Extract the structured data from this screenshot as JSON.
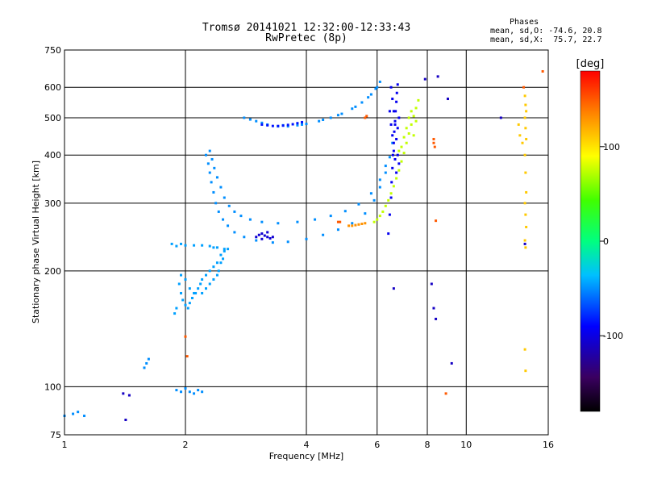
{
  "title": "Tromsø 20141021 12:32:00-12:33:43",
  "subtitle": "RwPretec (8p)",
  "phase_stats": {
    "heading": "Phases",
    "o_line": "mean, sd,O: -74.6, 20.8",
    "x_line": "mean, sd,X:  75.7, 22.7"
  },
  "chart_data": {
    "type": "scatter",
    "xlabel": "Frequency [MHz]",
    "ylabel": "Stationary phase Virtual Height [km]",
    "xscale": "log",
    "yscale": "log",
    "xlim": [
      1,
      16
    ],
    "ylim": [
      75,
      750
    ],
    "grid": true,
    "x_ticks": [
      1,
      2,
      4,
      6,
      8,
      10,
      16
    ],
    "y_ticks": [
      75,
      100,
      200,
      300,
      400,
      500,
      600,
      750
    ],
    "colorbar": {
      "label": "[deg]",
      "range": [
        -180,
        180
      ],
      "ticks": [
        100,
        0,
        -100
      ]
    },
    "series": [
      {
        "phase_deg": -45,
        "points": [
          [
            1.85,
            235
          ],
          [
            1.9,
            232
          ],
          [
            1.95,
            235
          ],
          [
            2.0,
            233
          ],
          [
            2.1,
            233
          ],
          [
            2.2,
            233
          ],
          [
            2.3,
            232
          ],
          [
            2.4,
            230
          ],
          [
            2.5,
            228
          ],
          [
            2.35,
            230
          ]
        ]
      },
      {
        "phase_deg": -45,
        "points": [
          [
            1.93,
            185
          ],
          [
            1.95,
            175
          ],
          [
            1.97,
            168
          ],
          [
            2.0,
            163
          ],
          [
            2.03,
            160
          ],
          [
            2.05,
            165
          ],
          [
            2.08,
            170
          ],
          [
            2.1,
            175
          ],
          [
            1.9,
            160
          ],
          [
            1.88,
            155
          ],
          [
            1.95,
            195
          ],
          [
            2.0,
            190
          ],
          [
            2.05,
            180
          ],
          [
            2.12,
            175
          ],
          [
            2.15,
            180
          ],
          [
            2.18,
            185
          ],
          [
            2.2,
            190
          ],
          [
            2.25,
            195
          ],
          [
            2.3,
            200
          ],
          [
            2.35,
            205
          ],
          [
            2.4,
            210
          ],
          [
            2.45,
            220
          ],
          [
            2.5,
            225
          ],
          [
            2.55,
            228
          ],
          [
            2.2,
            175
          ],
          [
            2.25,
            180
          ],
          [
            2.3,
            185
          ],
          [
            2.35,
            190
          ],
          [
            2.4,
            195
          ],
          [
            2.42,
            200
          ],
          [
            2.45,
            210
          ],
          [
            2.48,
            215
          ]
        ]
      },
      {
        "phase_deg": -50,
        "points": [
          [
            2.25,
            400
          ],
          [
            2.28,
            380
          ],
          [
            2.3,
            360
          ],
          [
            2.32,
            340
          ],
          [
            2.35,
            320
          ],
          [
            2.38,
            300
          ],
          [
            2.42,
            285
          ],
          [
            2.48,
            272
          ],
          [
            2.55,
            262
          ],
          [
            2.65,
            252
          ],
          [
            2.8,
            245
          ],
          [
            3.0,
            240
          ],
          [
            3.3,
            237
          ],
          [
            3.6,
            238
          ],
          [
            4.0,
            242
          ],
          [
            4.4,
            248
          ],
          [
            4.8,
            256
          ],
          [
            5.2,
            266
          ],
          [
            5.6,
            282
          ],
          [
            5.9,
            305
          ],
          [
            6.1,
            330
          ],
          [
            6.3,
            360
          ],
          [
            6.45,
            395
          ],
          [
            6.55,
            430
          ],
          [
            2.3,
            410
          ],
          [
            2.33,
            390
          ],
          [
            2.36,
            370
          ],
          [
            2.4,
            350
          ],
          [
            2.45,
            330
          ],
          [
            2.5,
            310
          ],
          [
            2.57,
            295
          ],
          [
            2.65,
            285
          ],
          [
            2.75,
            278
          ],
          [
            2.9,
            272
          ],
          [
            3.1,
            268
          ],
          [
            3.4,
            266
          ],
          [
            3.8,
            268
          ],
          [
            4.2,
            272
          ],
          [
            4.6,
            278
          ],
          [
            5.0,
            286
          ],
          [
            5.4,
            298
          ],
          [
            5.8,
            318
          ],
          [
            6.1,
            345
          ],
          [
            6.3,
            375
          ]
        ]
      },
      {
        "phase_deg": -50,
        "points": [
          [
            2.8,
            500
          ],
          [
            2.9,
            495
          ],
          [
            3.0,
            490
          ],
          [
            3.2,
            480
          ],
          [
            3.4,
            475
          ],
          [
            3.6,
            475
          ],
          [
            3.8,
            478
          ],
          [
            4.0,
            482
          ],
          [
            4.3,
            490
          ],
          [
            4.6,
            500
          ],
          [
            4.9,
            512
          ],
          [
            5.2,
            528
          ],
          [
            5.5,
            548
          ],
          [
            5.8,
            575
          ],
          [
            6.0,
            600
          ],
          [
            6.1,
            620
          ],
          [
            3.1,
            485
          ],
          [
            3.5,
            478
          ],
          [
            3.9,
            480
          ],
          [
            4.4,
            494
          ],
          [
            4.8,
            508
          ],
          [
            5.3,
            534
          ],
          [
            5.7,
            565
          ],
          [
            5.95,
            595
          ]
        ]
      },
      {
        "phase_deg": -85,
        "points": [
          [
            3.1,
            480
          ],
          [
            3.2,
            478
          ],
          [
            3.3,
            476
          ],
          [
            3.4,
            476
          ],
          [
            3.5,
            477
          ],
          [
            3.6,
            479
          ],
          [
            3.7,
            481
          ],
          [
            3.8,
            484
          ],
          [
            3.9,
            487
          ]
        ]
      },
      {
        "phase_deg": -105,
        "points": [
          [
            3.0,
            245
          ],
          [
            3.05,
            248
          ],
          [
            3.1,
            250
          ],
          [
            3.15,
            247
          ],
          [
            3.2,
            245
          ],
          [
            3.25,
            243
          ],
          [
            3.3,
            245
          ],
          [
            3.2,
            252
          ],
          [
            3.1,
            242
          ]
        ]
      },
      {
        "phase_deg": -95,
        "points": [
          [
            6.4,
            250
          ],
          [
            6.45,
            280
          ],
          [
            6.5,
            310
          ],
          [
            6.52,
            340
          ],
          [
            6.55,
            370
          ],
          [
            6.57,
            400
          ],
          [
            6.6,
            430
          ],
          [
            6.62,
            460
          ],
          [
            6.65,
            490
          ],
          [
            6.67,
            520
          ],
          [
            6.7,
            550
          ],
          [
            6.72,
            580
          ],
          [
            6.75,
            610
          ],
          [
            6.5,
            600
          ],
          [
            6.55,
            560
          ],
          [
            6.6,
            520
          ],
          [
            6.65,
            480
          ],
          [
            6.7,
            440
          ],
          [
            6.75,
            400
          ],
          [
            6.8,
            380
          ],
          [
            6.45,
            520
          ],
          [
            6.5,
            480
          ],
          [
            6.55,
            450
          ],
          [
            6.6,
            410
          ],
          [
            6.65,
            390
          ],
          [
            6.7,
            360
          ],
          [
            6.75,
            470
          ],
          [
            6.8,
            500
          ]
        ]
      },
      {
        "phase_deg": 75,
        "points": [
          [
            5.9,
            268
          ],
          [
            6.0,
            272
          ],
          [
            6.1,
            278
          ],
          [
            6.2,
            285
          ],
          [
            6.3,
            295
          ],
          [
            6.4,
            305
          ],
          [
            6.5,
            318
          ],
          [
            6.6,
            332
          ],
          [
            6.7,
            348
          ],
          [
            6.8,
            365
          ],
          [
            6.9,
            385
          ],
          [
            7.0,
            405
          ],
          [
            7.1,
            430
          ],
          [
            7.2,
            455
          ],
          [
            7.3,
            480
          ],
          [
            7.4,
            505
          ],
          [
            7.5,
            530
          ],
          [
            7.6,
            555
          ],
          [
            7.1,
            470
          ],
          [
            7.2,
            500
          ],
          [
            7.3,
            520
          ],
          [
            6.9,
            420
          ],
          [
            7.0,
            445
          ],
          [
            6.8,
            410
          ],
          [
            7.4,
            450
          ],
          [
            7.5,
            490
          ]
        ]
      },
      {
        "phase_deg": 130,
        "points": [
          [
            5.1,
            262
          ],
          [
            5.2,
            262
          ],
          [
            5.3,
            263
          ],
          [
            5.4,
            264
          ],
          [
            5.5,
            265
          ],
          [
            5.6,
            266
          ]
        ]
      },
      {
        "phase_deg": 150,
        "points": [
          [
            4.8,
            268
          ],
          [
            4.85,
            268
          ],
          [
            5.6,
            500
          ],
          [
            5.65,
            505
          ],
          [
            8.3,
            430
          ],
          [
            8.35,
            420
          ]
        ]
      },
      {
        "phase_deg": -50,
        "points": [
          [
            1.6,
            115
          ],
          [
            1.62,
            118
          ],
          [
            1.58,
            112
          ],
          [
            1.9,
            98
          ],
          [
            1.95,
            97
          ],
          [
            2.0,
            99
          ],
          [
            2.05,
            97
          ],
          [
            2.1,
            96
          ],
          [
            2.15,
            98
          ],
          [
            2.2,
            97
          ],
          [
            1.05,
            85
          ],
          [
            1.08,
            86
          ],
          [
            1.12,
            84
          ],
          [
            1.0,
            84
          ]
        ]
      },
      {
        "phase_deg": -110,
        "points": [
          [
            1.4,
            96
          ],
          [
            1.45,
            95
          ],
          [
            1.42,
            82
          ],
          [
            7.9,
            630
          ],
          [
            8.5,
            640
          ],
          [
            9.0,
            560
          ],
          [
            6.6,
            180
          ],
          [
            8.2,
            185
          ],
          [
            8.3,
            160
          ],
          [
            8.4,
            150
          ],
          [
            9.2,
            115
          ],
          [
            12.2,
            500
          ],
          [
            14.0,
            235
          ]
        ]
      },
      {
        "phase_deg": 110,
        "points": [
          [
            14.0,
            570
          ],
          [
            14.05,
            540
          ],
          [
            14.1,
            520
          ],
          [
            14.0,
            500
          ],
          [
            14.05,
            470
          ],
          [
            14.1,
            440
          ],
          [
            14.0,
            400
          ],
          [
            14.05,
            360
          ],
          [
            14.1,
            320
          ],
          [
            14.0,
            300
          ],
          [
            14.05,
            280
          ],
          [
            14.1,
            260
          ],
          [
            14.0,
            240
          ],
          [
            14.05,
            230
          ],
          [
            14.0,
            125
          ],
          [
            14.05,
            110
          ],
          [
            13.5,
            480
          ],
          [
            13.6,
            450
          ],
          [
            13.8,
            430
          ]
        ]
      },
      {
        "phase_deg": 150,
        "points": [
          [
            8.3,
            440
          ],
          [
            8.9,
            96
          ],
          [
            2.0,
            135
          ],
          [
            2.02,
            120
          ],
          [
            15.5,
            660
          ],
          [
            13.9,
            600
          ],
          [
            8.4,
            270
          ]
        ]
      }
    ]
  }
}
